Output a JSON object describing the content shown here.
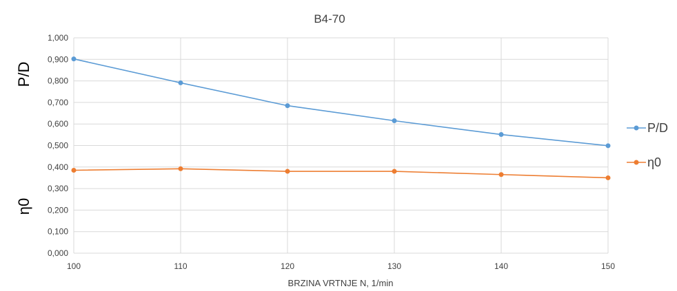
{
  "chart_data": {
    "type": "line",
    "title": "B4-70",
    "xlabel": "BRZINA VRTNJE N, 1/min",
    "ylabel_top": "P/D",
    "ylabel_bottom": "η0",
    "x": [
      100,
      110,
      120,
      130,
      140,
      150
    ],
    "x_tick_labels": [
      "100",
      "110",
      "120",
      "130",
      "140",
      "150"
    ],
    "xlim": [
      100,
      150
    ],
    "ylim": [
      0,
      1
    ],
    "y_tick_labels": [
      "0,000",
      "0,100",
      "0,200",
      "0,300",
      "0,400",
      "0,500",
      "0,600",
      "0,700",
      "0,800",
      "0,900",
      "1,000"
    ],
    "grid": true,
    "legend_position": "right",
    "series": [
      {
        "name": "P/D",
        "values": [
          0.902,
          0.791,
          0.685,
          0.615,
          0.551,
          0.499
        ],
        "color": "#5b9bd5"
      },
      {
        "name": "η0",
        "values": [
          0.385,
          0.392,
          0.38,
          0.38,
          0.365,
          0.35
        ],
        "color": "#ed7d31"
      }
    ]
  }
}
